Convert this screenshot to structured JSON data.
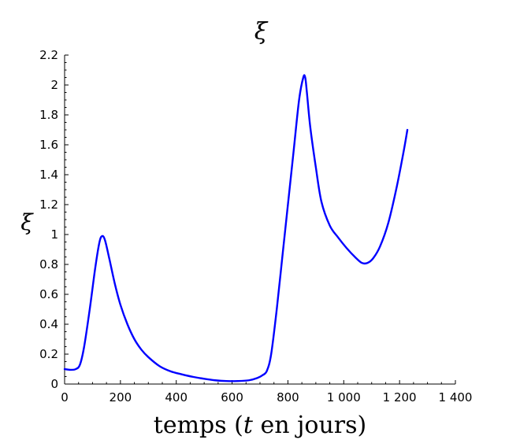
{
  "chart_data": {
    "type": "line",
    "title": "ξ",
    "xlabel_parts": [
      "temps (",
      "t",
      " en jours)"
    ],
    "ylabel": "ξ",
    "xlim": [
      0,
      1400
    ],
    "ylim": [
      0,
      2.2
    ],
    "grid": false,
    "x_ticks": [
      0,
      200,
      400,
      600,
      800,
      1000,
      1200,
      1400
    ],
    "x_tick_labels": [
      "0",
      "200",
      "400",
      "600",
      "800",
      "1 000",
      "1 200",
      "1 400"
    ],
    "y_ticks": [
      0,
      0.2,
      0.4,
      0.6,
      0.8,
      1,
      1.2,
      1.4,
      1.6,
      1.8,
      2,
      2.2
    ],
    "y_tick_labels": [
      "0",
      "0.2",
      "0.4",
      "0.6",
      "0.8",
      "1",
      "1.2",
      "1.4",
      "1.6",
      "1.8",
      "2",
      "2.2"
    ],
    "series": [
      {
        "color": "#0000ff",
        "points": [
          [
            0,
            0.1
          ],
          [
            20,
            0.095
          ],
          [
            40,
            0.1
          ],
          [
            55,
            0.13
          ],
          [
            70,
            0.25
          ],
          [
            90,
            0.5
          ],
          [
            110,
            0.78
          ],
          [
            125,
            0.95
          ],
          [
            135,
            0.99
          ],
          [
            145,
            0.96
          ],
          [
            160,
            0.84
          ],
          [
            180,
            0.67
          ],
          [
            200,
            0.53
          ],
          [
            225,
            0.4
          ],
          [
            250,
            0.3
          ],
          [
            275,
            0.23
          ],
          [
            300,
            0.18
          ],
          [
            340,
            0.12
          ],
          [
            380,
            0.085
          ],
          [
            420,
            0.065
          ],
          [
            460,
            0.048
          ],
          [
            500,
            0.035
          ],
          [
            540,
            0.025
          ],
          [
            580,
            0.02
          ],
          [
            620,
            0.02
          ],
          [
            660,
            0.025
          ],
          [
            690,
            0.04
          ],
          [
            710,
            0.06
          ],
          [
            725,
            0.09
          ],
          [
            740,
            0.2
          ],
          [
            760,
            0.5
          ],
          [
            780,
            0.85
          ],
          [
            800,
            1.2
          ],
          [
            820,
            1.55
          ],
          [
            840,
            1.9
          ],
          [
            855,
            2.05
          ],
          [
            862,
            2.05
          ],
          [
            868,
            1.95
          ],
          [
            880,
            1.72
          ],
          [
            900,
            1.45
          ],
          [
            920,
            1.22
          ],
          [
            950,
            1.06
          ],
          [
            980,
            0.98
          ],
          [
            1010,
            0.91
          ],
          [
            1040,
            0.85
          ],
          [
            1065,
            0.81
          ],
          [
            1085,
            0.81
          ],
          [
            1105,
            0.84
          ],
          [
            1130,
            0.92
          ],
          [
            1160,
            1.08
          ],
          [
            1190,
            1.32
          ],
          [
            1215,
            1.56
          ],
          [
            1228,
            1.7
          ]
        ]
      }
    ]
  }
}
